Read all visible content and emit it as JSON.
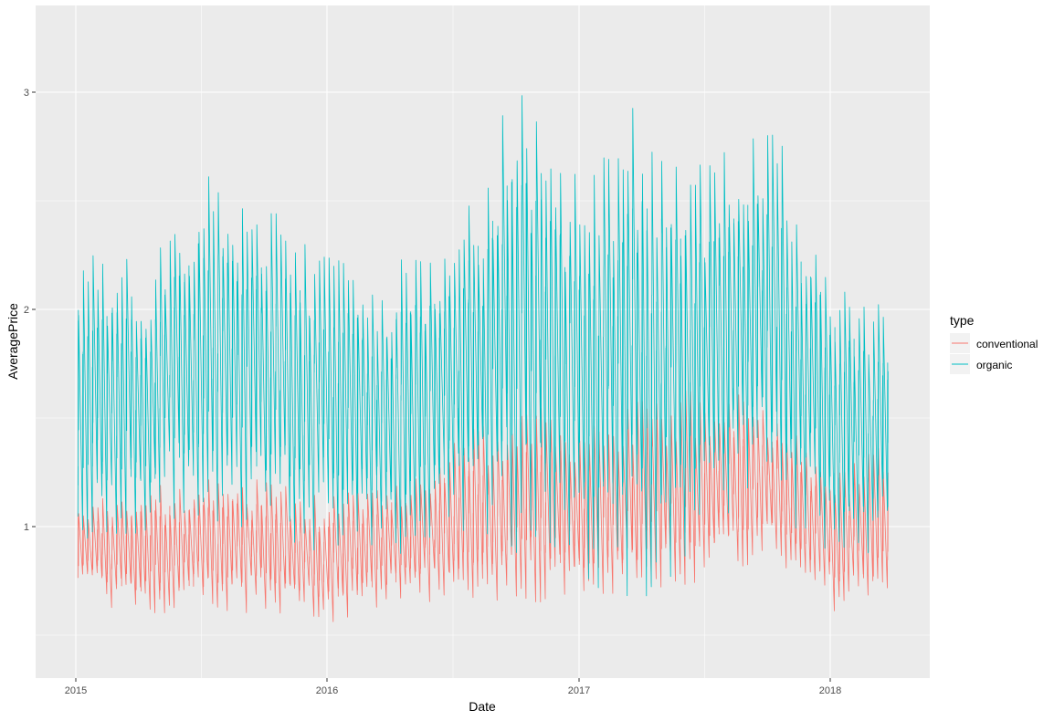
{
  "chart_data": {
    "type": "line",
    "xlabel": "Date",
    "ylabel": "AveragePrice",
    "x_ticks": [
      "2015",
      "2016",
      "2017",
      "2018"
    ],
    "y_ticks": [
      "1",
      "2",
      "3"
    ],
    "x_range": [
      "2015-01-04",
      "2018-03-25"
    ],
    "ylim": [
      0.45,
      3.3
    ],
    "grid": true,
    "legend": {
      "title": "type",
      "position": "right"
    },
    "series": [
      {
        "name": "conventional",
        "color": "#F8766D",
        "sampled_weekly": [
          {
            "x": "2015-01-04",
            "min": 0.65,
            "max": 1.18
          },
          {
            "x": "2015-04-05",
            "min": 0.55,
            "max": 1.22
          },
          {
            "x": "2015-07-05",
            "min": 0.54,
            "max": 1.31
          },
          {
            "x": "2015-10-04",
            "min": 0.58,
            "max": 1.25
          },
          {
            "x": "2016-01-03",
            "min": 0.52,
            "max": 1.17
          },
          {
            "x": "2016-04-03",
            "min": 0.58,
            "max": 1.27
          },
          {
            "x": "2016-07-03",
            "min": 0.6,
            "max": 1.45
          },
          {
            "x": "2016-10-02",
            "min": 0.62,
            "max": 1.6
          },
          {
            "x": "2017-01-01",
            "min": 0.55,
            "max": 1.6
          },
          {
            "x": "2017-04-02",
            "min": 0.62,
            "max": 1.65
          },
          {
            "x": "2017-07-02",
            "min": 0.68,
            "max": 1.7
          },
          {
            "x": "2017-10-01",
            "min": 0.82,
            "max": 1.62
          },
          {
            "x": "2018-01-07",
            "min": 0.57,
            "max": 1.32
          },
          {
            "x": "2018-03-25",
            "min": 0.57,
            "max": 1.5
          }
        ]
      },
      {
        "name": "organic",
        "color": "#00BFC4",
        "sampled_weekly": [
          {
            "x": "2015-01-04",
            "min": 0.85,
            "max": 2.35
          },
          {
            "x": "2015-04-05",
            "min": 0.85,
            "max": 2.3
          },
          {
            "x": "2015-07-05",
            "min": 0.95,
            "max": 2.75
          },
          {
            "x": "2015-10-04",
            "min": 0.85,
            "max": 2.6
          },
          {
            "x": "2016-01-03",
            "min": 0.8,
            "max": 2.35
          },
          {
            "x": "2016-04-03",
            "min": 0.75,
            "max": 2.35
          },
          {
            "x": "2016-07-03",
            "min": 0.9,
            "max": 2.45
          },
          {
            "x": "2016-10-02",
            "min": 0.75,
            "max": 3.25
          },
          {
            "x": "2017-01-01",
            "min": 0.6,
            "max": 2.7
          },
          {
            "x": "2017-04-02",
            "min": 0.45,
            "max": 3.15
          },
          {
            "x": "2017-07-02",
            "min": 0.85,
            "max": 2.75
          },
          {
            "x": "2017-10-01",
            "min": 1.0,
            "max": 3.0
          },
          {
            "x": "2018-01-07",
            "min": 0.7,
            "max": 2.3
          },
          {
            "x": "2018-03-25",
            "min": 0.75,
            "max": 2.1
          }
        ]
      }
    ]
  }
}
